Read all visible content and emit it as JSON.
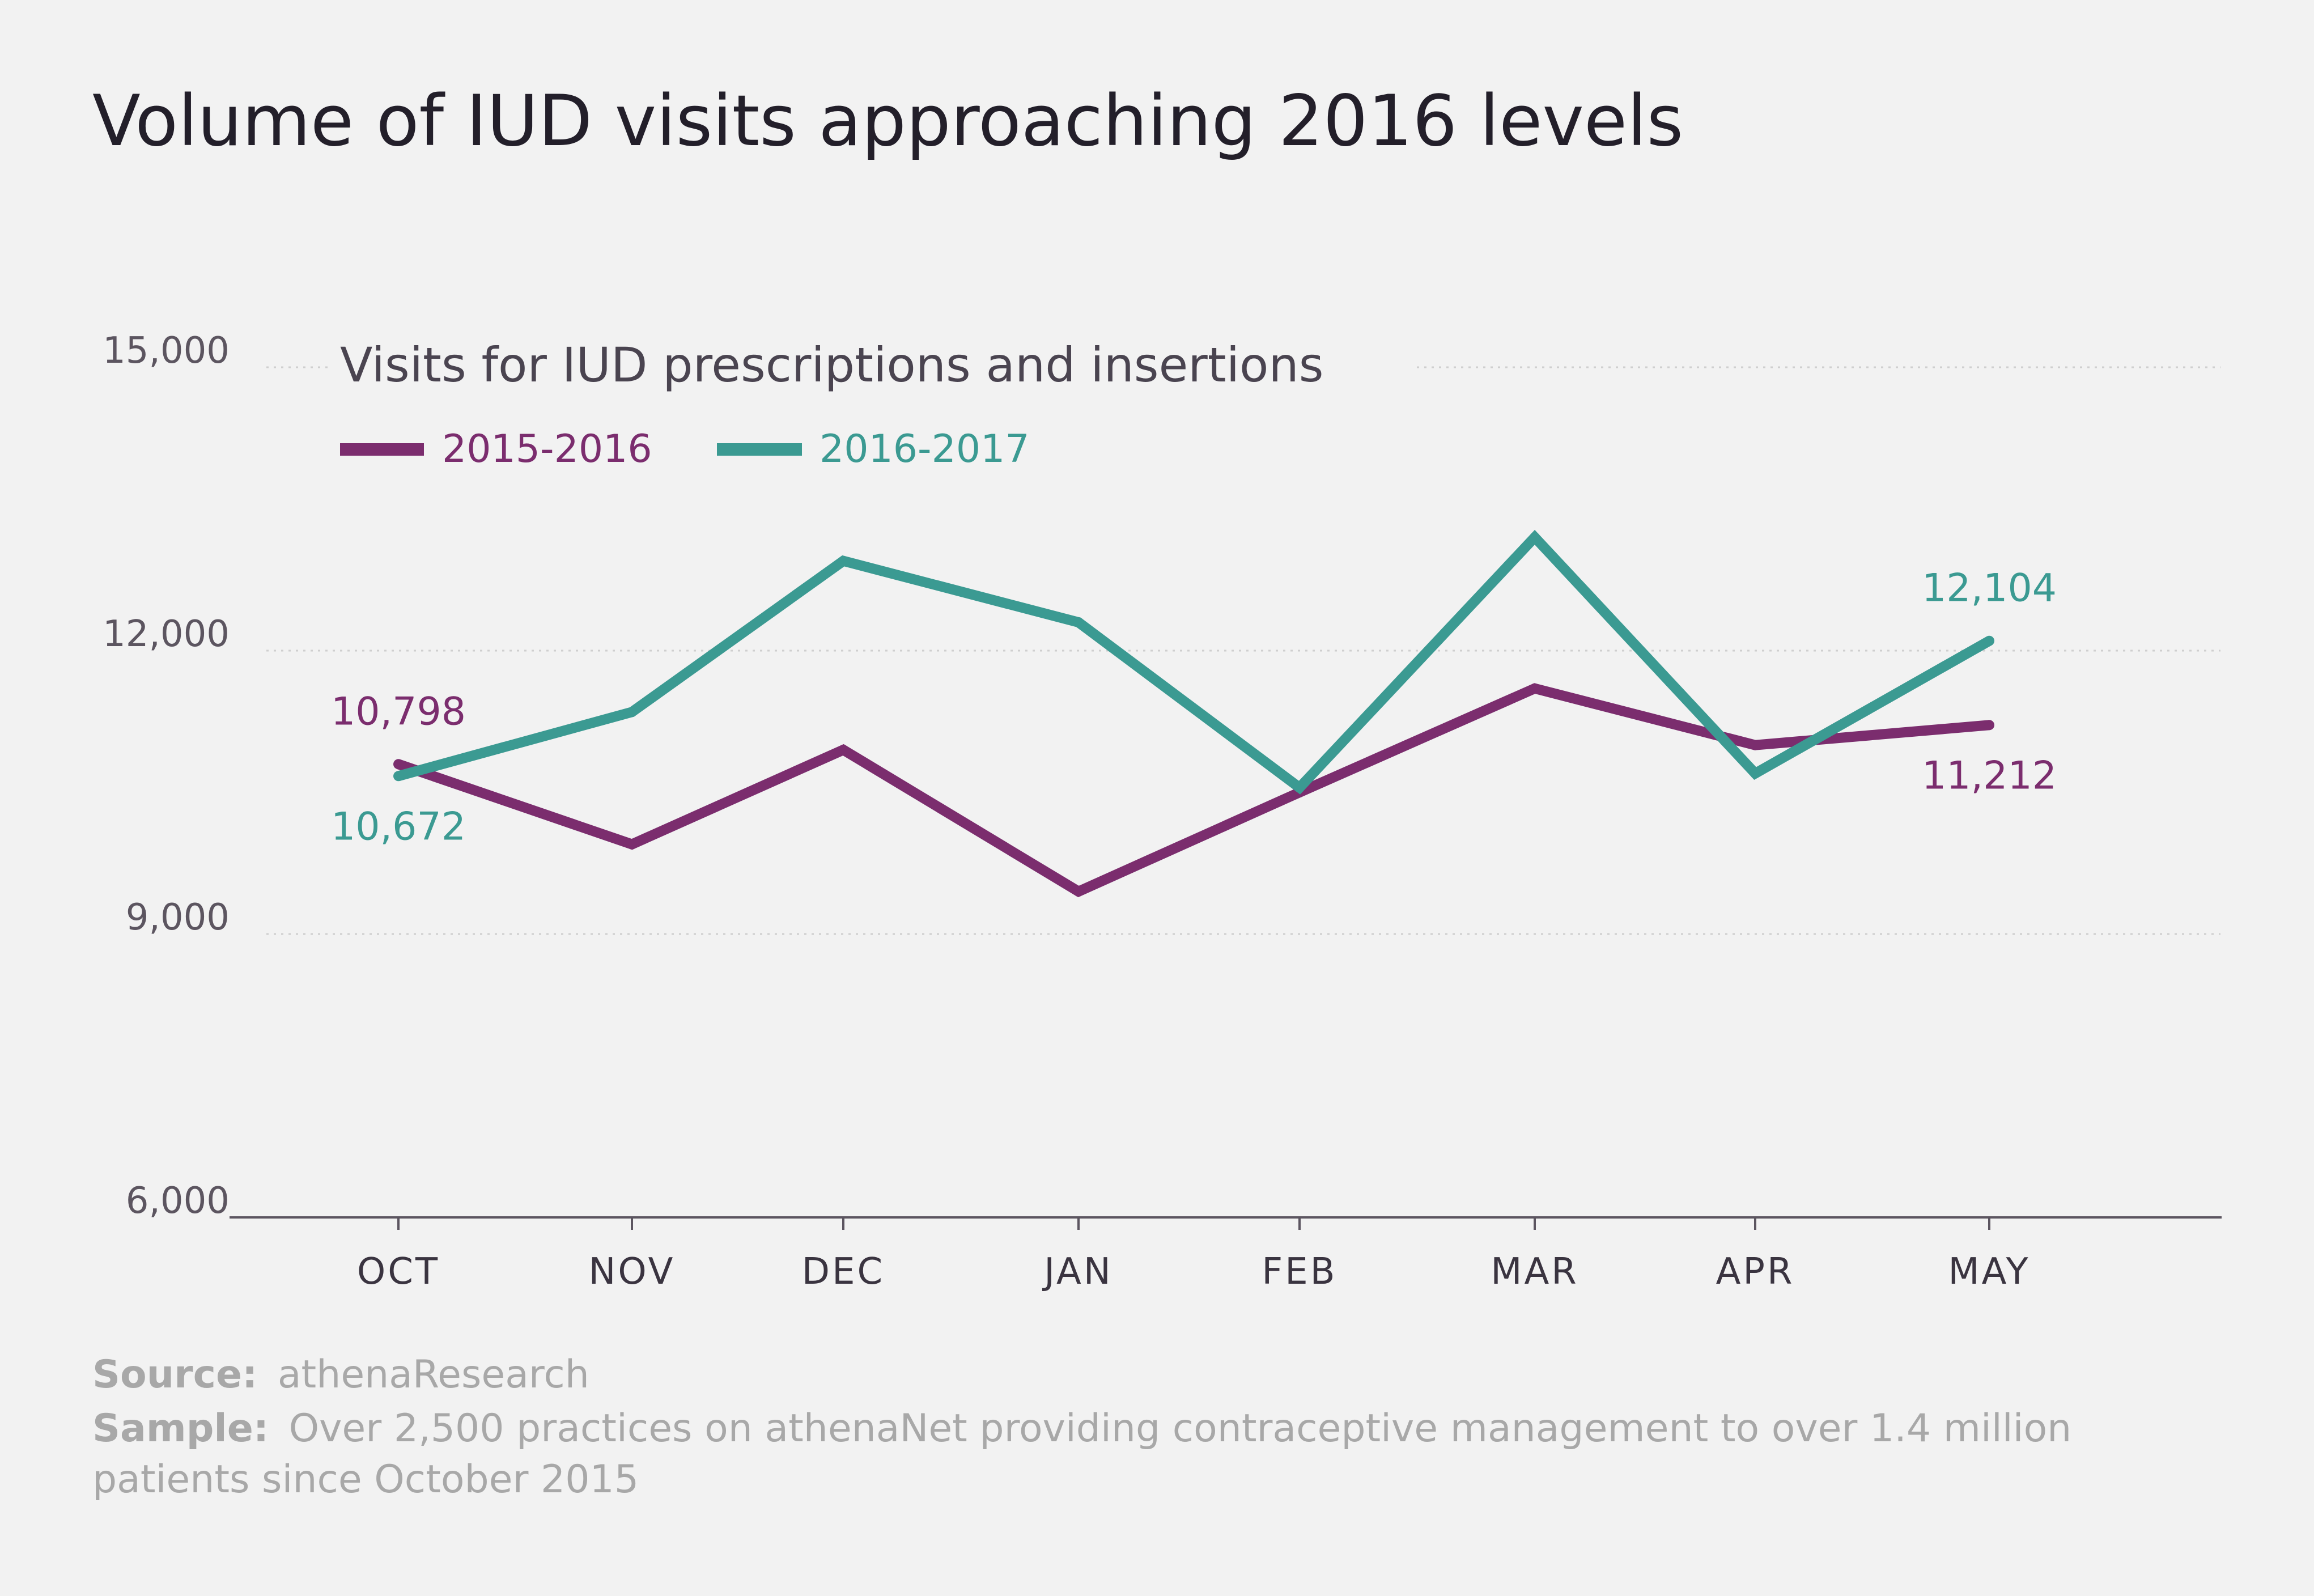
{
  "title": "Volume of IUD visits approaching 2016 levels",
  "colors": {
    "background": "#f2f2f2",
    "text": "#231f2a",
    "axis": "#5c5560",
    "grid": "#cfcfcf",
    "note": "#a8a8a8"
  },
  "chart_data": {
    "type": "line",
    "subtitle": "Visits for IUD prescriptions and insertions",
    "categories": [
      "OCT",
      "NOV",
      "DEC",
      "JAN",
      "FEB",
      "MAR",
      "APR",
      "MAY"
    ],
    "ylim": [
      6000,
      15000
    ],
    "yticks": [
      6000,
      9000,
      12000,
      15000
    ],
    "ytick_labels": [
      "6,000",
      "9,000",
      "12,000",
      "15,000"
    ],
    "grid": "dotted horizontal",
    "legend_position": "top-left",
    "series": [
      {
        "name": "2015-2016",
        "color": "#7b2d6e",
        "values": [
          10798,
          9950,
          10950,
          9450,
          10500,
          11600,
          11000,
          11212
        ],
        "labels": [
          {
            "index": 0,
            "text": "10,798",
            "position": "above"
          },
          {
            "index": 7,
            "text": "11,212",
            "position": "below"
          }
        ]
      },
      {
        "name": "2016-2017",
        "color": "#3b9a92",
        "values": [
          10672,
          11350,
          12950,
          12300,
          10550,
          13200,
          10700,
          12104
        ],
        "labels": [
          {
            "index": 0,
            "text": "10,672",
            "position": "below"
          },
          {
            "index": 7,
            "text": "12,104",
            "position": "above"
          }
        ]
      }
    ]
  },
  "footer": {
    "source_label": "Source:",
    "source_text": "athenaResearch",
    "sample_label": "Sample:",
    "sample_text_line1": "Over 2,500 practices on athenaNet providing contraceptive management to over 1.4 million",
    "sample_text_line2": "patients since October 2015"
  }
}
